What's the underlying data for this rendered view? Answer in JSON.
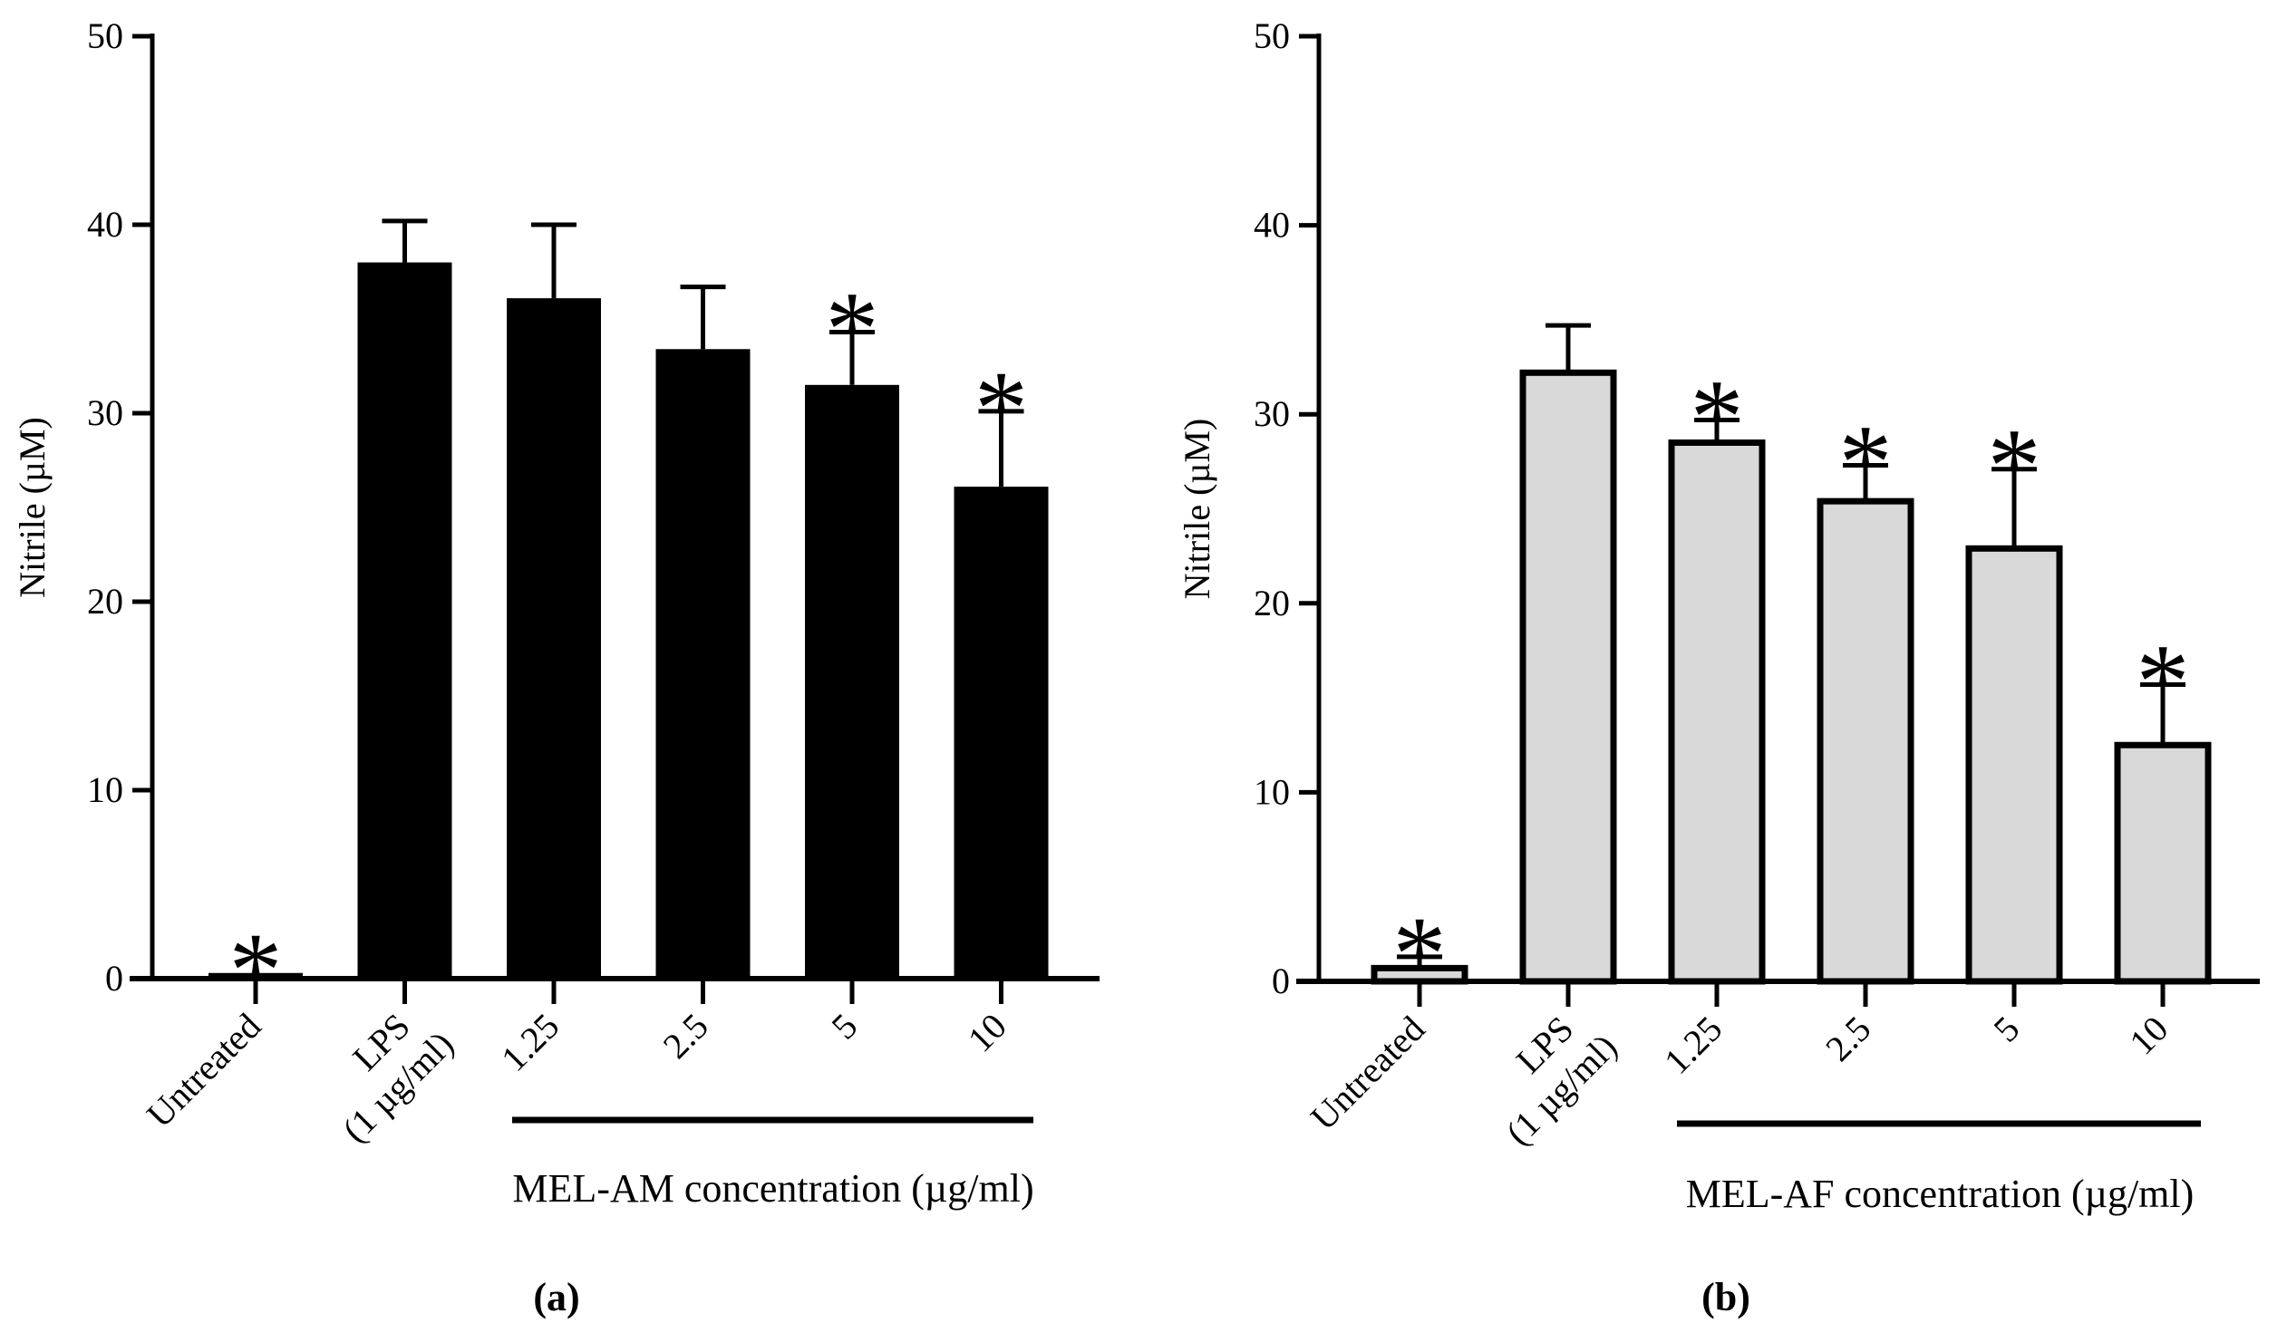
{
  "chart_data": [
    {
      "type": "bar",
      "panel_label": "(a)",
      "categories": [
        "Untreated",
        "LPS\n(1 µg/ml)",
        "1.25",
        "2.5",
        "5",
        "10"
      ],
      "series": [
        {
          "name": "Nitrile",
          "values": [
            0.3,
            38.0,
            36.1,
            33.4,
            31.5,
            26.1
          ],
          "errors": [
            0.0,
            2.2,
            3.9,
            3.3,
            2.8,
            4.0
          ],
          "significant": [
            true,
            false,
            false,
            false,
            true,
            true
          ]
        }
      ],
      "bar_fill": "#000000",
      "significance_marker": "*",
      "ylabel": "Nitrile (µM)",
      "xlabel": "MEL-AM concentration (µg/ml)",
      "ylim": [
        0,
        50
      ],
      "yticks": [
        0,
        10,
        20,
        30,
        40,
        50
      ]
    },
    {
      "type": "bar",
      "panel_label": "(b)",
      "categories": [
        "Untreated",
        "LPS\n(1 µg/ml)",
        "1.25",
        "2.5",
        "5",
        "10"
      ],
      "series": [
        {
          "name": "Nitrile",
          "values": [
            0.7,
            32.2,
            28.5,
            25.4,
            22.9,
            12.5
          ],
          "errors": [
            0.6,
            2.5,
            1.2,
            1.9,
            4.2,
            3.2
          ],
          "significant": [
            true,
            false,
            true,
            true,
            true,
            true
          ]
        }
      ],
      "bar_fill": "#d9d9d9",
      "significance_marker": "*",
      "ylabel": "Nitrile (µM)",
      "xlabel": "MEL-AF concentration (µg/ml)",
      "ylim": [
        0,
        50
      ],
      "yticks": [
        0,
        10,
        20,
        30,
        40,
        50
      ]
    }
  ]
}
